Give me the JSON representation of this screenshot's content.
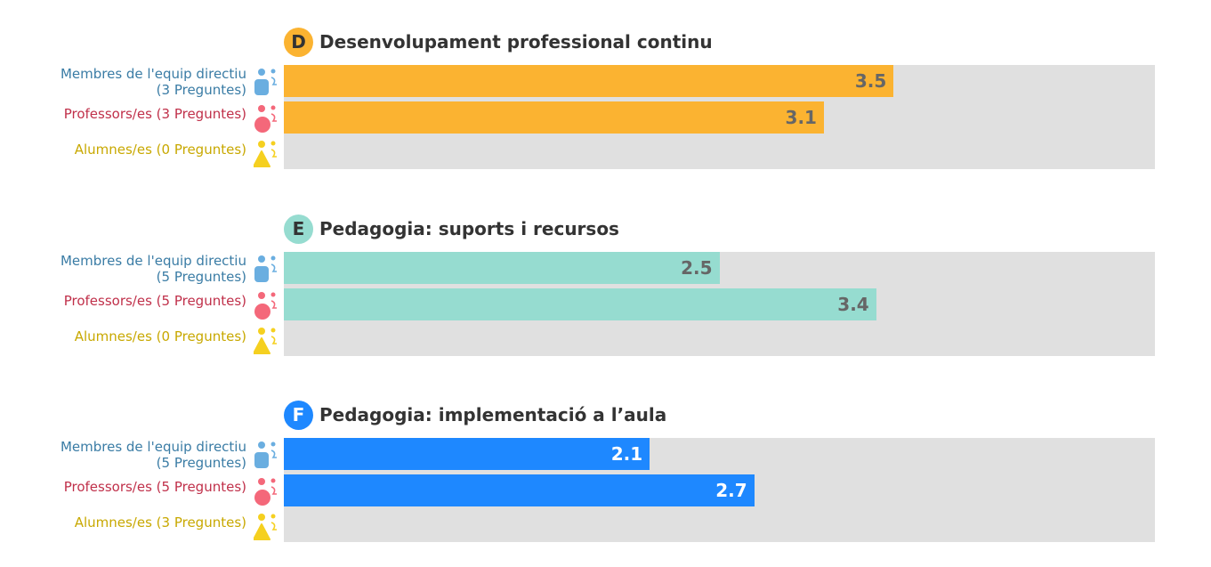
{
  "chart_data": {
    "type": "bar",
    "orientation": "horizontal",
    "xlim": [
      0,
      5
    ],
    "groups": [
      {
        "letter": "D",
        "title": "Desenvolupament professional continu",
        "color": "#fbb331",
        "value_color": "#666666",
        "rows": [
          {
            "label": "Membres de l'equip directiu",
            "questions": "(3 Preguntes)",
            "value": 3.5,
            "value_label": "3.5"
          },
          {
            "label": "Professors/es (3 Preguntes)",
            "value": 3.1,
            "value_label": "3.1"
          },
          {
            "label": "Alumnes/es (0 Preguntes)",
            "value": null
          }
        ]
      },
      {
        "letter": "E",
        "title": "Pedagogia: suports i recursos",
        "color": "#96dcd0",
        "value_color": "#666666",
        "rows": [
          {
            "label": "Membres de l'equip directiu",
            "questions": "(5 Preguntes)",
            "value": 2.5,
            "value_label": "2.5"
          },
          {
            "label": "Professors/es (5 Preguntes)",
            "value": 3.4,
            "value_label": "3.4"
          },
          {
            "label": "Alumnes/es (0 Preguntes)",
            "value": null
          }
        ]
      },
      {
        "letter": "F",
        "title": "Pedagogia: implementació a l’aula",
        "color": "#1e88ff",
        "value_color": "#ffffff",
        "rows": [
          {
            "label": "Membres de l'equip directiu",
            "questions": "(5 Preguntes)",
            "value": 2.1,
            "value_label": "2.1"
          },
          {
            "label": "Professors/es (5 Preguntes)",
            "value": 2.7,
            "value_label": "2.7"
          },
          {
            "label": "Alumnes/es (3 Preguntes)",
            "value": null
          }
        ]
      }
    ],
    "row_colors": [
      "#3a7ca5",
      "#c0304a",
      "#c8a800"
    ],
    "icon_colors": [
      "#6aaee0",
      "#f4687a",
      "#f5d020"
    ]
  }
}
